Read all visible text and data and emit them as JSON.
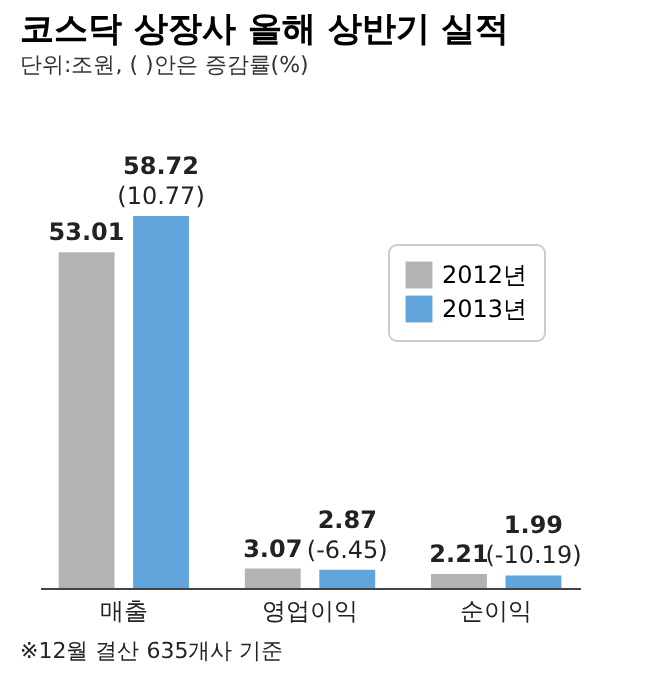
{
  "chart_data": {
    "type": "bar",
    "title": "코스닥 상장사 올해 상반기 실적",
    "subtitle": "단위:조원, ( )안은 증감률(%)",
    "categories": [
      "매출",
      "영업이익",
      "순이익"
    ],
    "series": [
      {
        "name": "2012년",
        "color": "#b3b3b3",
        "values": [
          53.01,
          3.07,
          2.21
        ],
        "value_labels": [
          "53.01",
          "3.07",
          "2.21"
        ]
      },
      {
        "name": "2013년",
        "color": "#5fa5dc",
        "values": [
          58.72,
          2.87,
          1.99
        ],
        "value_labels": [
          "58.72\n(10.77)",
          "2.87\n(-6.45)",
          "1.99\n(-10.19)"
        ]
      }
    ],
    "legend": "top right",
    "annotations": [
      "※12월 결산 635개사 기준"
    ]
  }
}
